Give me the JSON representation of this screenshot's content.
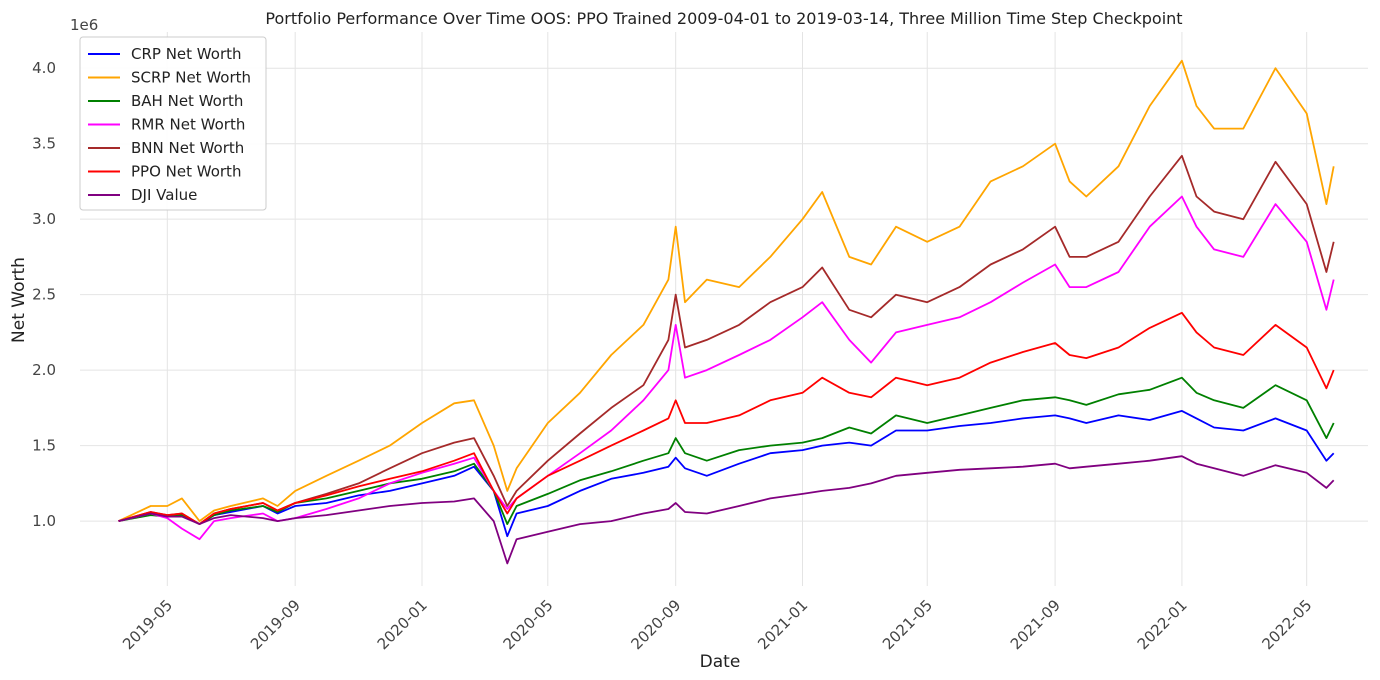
{
  "chart_data": {
    "type": "line",
    "title": "Portfolio Performance Over Time OOS: PPO Trained 2009-04-01 to 2019-03-14, Three Million Time Step Checkpoint",
    "xlabel": "Date",
    "ylabel": "Net Worth",
    "y_scale_label": "1e6",
    "y_scale": 1000000,
    "xlim": [
      "2019-02-06",
      "2022-06-29"
    ],
    "ylim": [
      0.57,
      4.24
    ],
    "x_ticks": [
      "2019-05",
      "2019-09",
      "2020-01",
      "2020-05",
      "2020-09",
      "2021-01",
      "2021-05",
      "2021-09",
      "2022-01",
      "2022-05"
    ],
    "y_ticks": [
      "1.0",
      "1.5",
      "2.0",
      "2.5",
      "3.0",
      "3.5",
      "4.0"
    ],
    "y_tick_values": [
      1.0,
      1.5,
      2.0,
      2.5,
      3.0,
      3.5,
      4.0
    ],
    "grid": true,
    "legend_position": "top-left",
    "x": [
      "2019-03-15",
      "2019-04-15",
      "2019-05-01",
      "2019-05-15",
      "2019-06-01",
      "2019-06-15",
      "2019-07-01",
      "2019-08-01",
      "2019-08-15",
      "2019-09-01",
      "2019-10-01",
      "2019-11-01",
      "2019-12-01",
      "2020-01-01",
      "2020-02-01",
      "2020-02-20",
      "2020-03-10",
      "2020-03-23",
      "2020-04-01",
      "2020-05-01",
      "2020-06-01",
      "2020-07-01",
      "2020-08-01",
      "2020-08-25",
      "2020-09-01",
      "2020-09-10",
      "2020-10-01",
      "2020-11-01",
      "2020-12-01",
      "2021-01-01",
      "2021-01-20",
      "2021-02-15",
      "2021-03-08",
      "2021-04-01",
      "2021-05-01",
      "2021-06-01",
      "2021-07-01",
      "2021-08-01",
      "2021-09-01",
      "2021-09-15",
      "2021-10-01",
      "2021-11-01",
      "2021-12-01",
      "2022-01-01",
      "2022-01-15",
      "2022-02-01",
      "2022-03-01",
      "2022-04-01",
      "2022-05-01",
      "2022-05-20",
      "2022-05-27"
    ],
    "series": [
      {
        "name": "CRP Net Worth",
        "color": "#0000ff",
        "values": [
          1.0,
          1.05,
          1.03,
          1.04,
          0.98,
          1.04,
          1.06,
          1.1,
          1.05,
          1.1,
          1.12,
          1.17,
          1.2,
          1.25,
          1.3,
          1.36,
          1.2,
          0.9,
          1.05,
          1.1,
          1.2,
          1.28,
          1.32,
          1.36,
          1.42,
          1.35,
          1.3,
          1.38,
          1.45,
          1.47,
          1.5,
          1.52,
          1.5,
          1.6,
          1.6,
          1.63,
          1.65,
          1.68,
          1.7,
          1.68,
          1.65,
          1.7,
          1.67,
          1.73,
          1.68,
          1.62,
          1.6,
          1.68,
          1.6,
          1.4,
          1.45
        ]
      },
      {
        "name": "SCRP Net Worth",
        "color": "#ffa500",
        "values": [
          1.0,
          1.1,
          1.1,
          1.15,
          1.0,
          1.07,
          1.1,
          1.15,
          1.1,
          1.2,
          1.3,
          1.4,
          1.5,
          1.65,
          1.78,
          1.8,
          1.5,
          1.2,
          1.35,
          1.65,
          1.85,
          2.1,
          2.3,
          2.6,
          2.95,
          2.45,
          2.6,
          2.55,
          2.75,
          3.0,
          3.18,
          2.75,
          2.7,
          2.95,
          2.85,
          2.95,
          3.25,
          3.35,
          3.5,
          3.25,
          3.15,
          3.35,
          3.75,
          4.05,
          3.75,
          3.6,
          3.6,
          4.0,
          3.7,
          3.1,
          3.35
        ]
      },
      {
        "name": "BAH Net Worth",
        "color": "#008000",
        "values": [
          1.0,
          1.04,
          1.03,
          1.04,
          0.98,
          1.04,
          1.07,
          1.1,
          1.06,
          1.12,
          1.15,
          1.2,
          1.25,
          1.28,
          1.33,
          1.38,
          1.2,
          0.98,
          1.1,
          1.18,
          1.27,
          1.33,
          1.4,
          1.45,
          1.55,
          1.45,
          1.4,
          1.47,
          1.5,
          1.52,
          1.55,
          1.62,
          1.58,
          1.7,
          1.65,
          1.7,
          1.75,
          1.8,
          1.82,
          1.8,
          1.77,
          1.84,
          1.87,
          1.95,
          1.85,
          1.8,
          1.75,
          1.9,
          1.8,
          1.55,
          1.65
        ]
      },
      {
        "name": "RMR Net Worth",
        "color": "#ff00ff",
        "values": [
          1.0,
          1.05,
          1.02,
          0.95,
          0.88,
          1.0,
          1.02,
          1.05,
          1.0,
          1.02,
          1.08,
          1.15,
          1.25,
          1.32,
          1.38,
          1.42,
          1.2,
          1.08,
          1.15,
          1.3,
          1.45,
          1.6,
          1.8,
          2.0,
          2.3,
          1.95,
          2.0,
          2.1,
          2.2,
          2.35,
          2.45,
          2.2,
          2.05,
          2.25,
          2.3,
          2.35,
          2.45,
          2.58,
          2.7,
          2.55,
          2.55,
          2.65,
          2.95,
          3.15,
          2.95,
          2.8,
          2.75,
          3.1,
          2.85,
          2.4,
          2.6
        ]
      },
      {
        "name": "BNN Net Worth",
        "color": "#a52a2a",
        "values": [
          1.0,
          1.06,
          1.04,
          1.05,
          0.98,
          1.05,
          1.08,
          1.12,
          1.07,
          1.12,
          1.18,
          1.25,
          1.35,
          1.45,
          1.52,
          1.55,
          1.3,
          1.1,
          1.2,
          1.4,
          1.58,
          1.75,
          1.9,
          2.2,
          2.5,
          2.15,
          2.2,
          2.3,
          2.45,
          2.55,
          2.68,
          2.4,
          2.35,
          2.5,
          2.45,
          2.55,
          2.7,
          2.8,
          2.95,
          2.75,
          2.75,
          2.85,
          3.15,
          3.42,
          3.15,
          3.05,
          3.0,
          3.38,
          3.1,
          2.65,
          2.85
        ]
      },
      {
        "name": "PPO Net Worth",
        "color": "#ff0000",
        "values": [
          1.0,
          1.06,
          1.04,
          1.05,
          0.98,
          1.05,
          1.08,
          1.12,
          1.07,
          1.12,
          1.17,
          1.23,
          1.28,
          1.33,
          1.4,
          1.45,
          1.2,
          1.05,
          1.15,
          1.3,
          1.4,
          1.5,
          1.6,
          1.68,
          1.8,
          1.65,
          1.65,
          1.7,
          1.8,
          1.85,
          1.95,
          1.85,
          1.82,
          1.95,
          1.9,
          1.95,
          2.05,
          2.12,
          2.18,
          2.1,
          2.08,
          2.15,
          2.28,
          2.38,
          2.25,
          2.15,
          2.1,
          2.3,
          2.15,
          1.88,
          2.0
        ]
      },
      {
        "name": "DJI Value",
        "color": "#800080",
        "values": [
          1.0,
          1.05,
          1.03,
          1.03,
          0.98,
          1.02,
          1.04,
          1.02,
          1.0,
          1.02,
          1.04,
          1.07,
          1.1,
          1.12,
          1.13,
          1.15,
          1.0,
          0.72,
          0.88,
          0.93,
          0.98,
          1.0,
          1.05,
          1.08,
          1.12,
          1.06,
          1.05,
          1.1,
          1.15,
          1.18,
          1.2,
          1.22,
          1.25,
          1.3,
          1.32,
          1.34,
          1.35,
          1.36,
          1.38,
          1.35,
          1.36,
          1.38,
          1.4,
          1.43,
          1.38,
          1.35,
          1.3,
          1.37,
          1.32,
          1.22,
          1.27
        ]
      }
    ]
  }
}
